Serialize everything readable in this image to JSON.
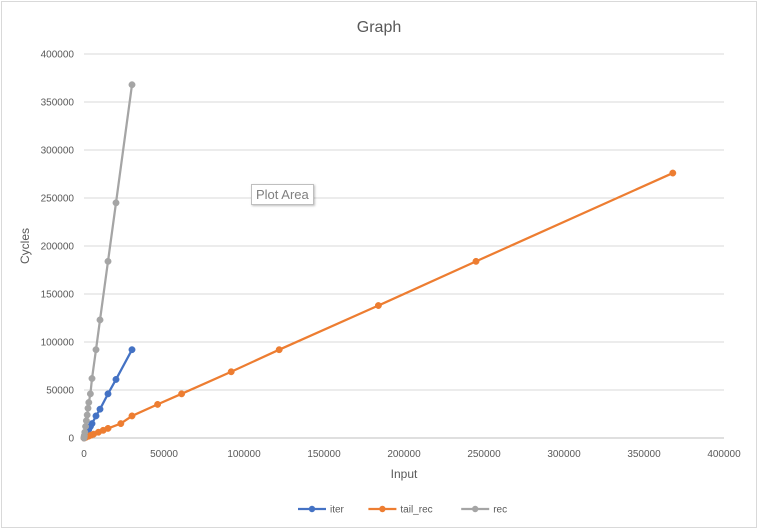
{
  "tooltip": {
    "text": "Plot Area"
  },
  "chart_data": {
    "type": "scatter",
    "title": "Graph",
    "xlabel": "Input",
    "ylabel": "Cycles",
    "xlim": [
      0,
      400000
    ],
    "ylim": [
      0,
      400000
    ],
    "xticks": [
      0,
      50000,
      100000,
      150000,
      200000,
      250000,
      300000,
      350000,
      400000
    ],
    "yticks": [
      0,
      50000,
      100000,
      150000,
      200000,
      250000,
      300000,
      350000,
      400000
    ],
    "grid": true,
    "legend_position": "bottom",
    "series": [
      {
        "name": "iter",
        "color": "#4472c4",
        "marker": "circle",
        "points": [
          [
            0,
            0
          ],
          [
            100,
            300
          ],
          [
            200,
            600
          ],
          [
            500,
            1500
          ],
          [
            1000,
            3000
          ],
          [
            1500,
            4500
          ],
          [
            2000,
            6000
          ],
          [
            3000,
            9000
          ],
          [
            4000,
            12000
          ],
          [
            5000,
            15000
          ],
          [
            7500,
            23000
          ],
          [
            10000,
            30000
          ],
          [
            15000,
            46000
          ],
          [
            20000,
            61000
          ],
          [
            30000,
            92000
          ]
        ]
      },
      {
        "name": "tail_rec",
        "color": "#ed7d31",
        "marker": "circle",
        "points": [
          [
            0,
            0
          ],
          [
            300,
            200
          ],
          [
            600,
            400
          ],
          [
            1500,
            1000
          ],
          [
            3000,
            2000
          ],
          [
            4500,
            3000
          ],
          [
            6000,
            4000
          ],
          [
            9000,
            6000
          ],
          [
            12000,
            8000
          ],
          [
            15000,
            10000
          ],
          [
            23000,
            15000
          ],
          [
            30000,
            23000
          ],
          [
            46000,
            35000
          ],
          [
            61000,
            46000
          ],
          [
            92000,
            69000
          ],
          [
            122000,
            92000
          ],
          [
            184000,
            138000
          ],
          [
            245000,
            184000
          ],
          [
            368000,
            276000
          ]
        ]
      },
      {
        "name": "rec",
        "color": "#a5a5a5",
        "marker": "circle",
        "points": [
          [
            0,
            0
          ],
          [
            100,
            1200
          ],
          [
            200,
            2500
          ],
          [
            500,
            6000
          ],
          [
            1000,
            12000
          ],
          [
            1500,
            18000
          ],
          [
            2000,
            24000
          ],
          [
            2500,
            31000
          ],
          [
            3000,
            37000
          ],
          [
            4000,
            46000
          ],
          [
            5000,
            62000
          ],
          [
            7500,
            92000
          ],
          [
            10000,
            123000
          ],
          [
            15000,
            184000
          ],
          [
            20000,
            245000
          ],
          [
            30000,
            368000
          ]
        ]
      }
    ]
  }
}
